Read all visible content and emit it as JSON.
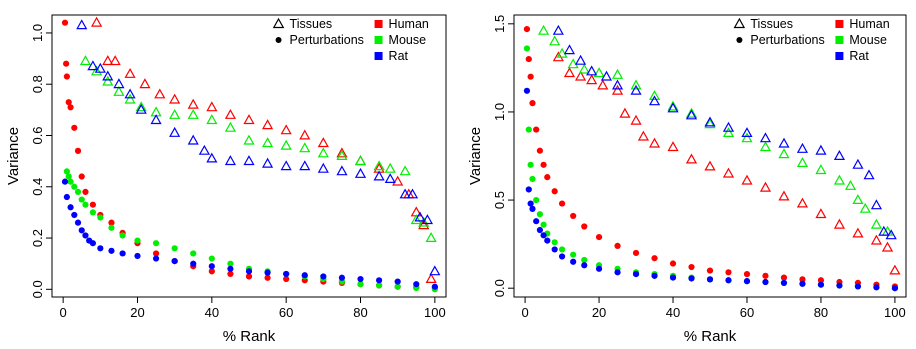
{
  "chart_data": [
    {
      "type": "scatter",
      "xlabel": "% Rank",
      "ylabel": "Variance",
      "xlim": [
        0,
        100
      ],
      "ylim": [
        0,
        1.05
      ],
      "xticks": [
        "0",
        "20",
        "40",
        "60",
        "80",
        "100"
      ],
      "yticks": [
        "0.0",
        "0.2",
        "0.4",
        "0.6",
        "0.8",
        "1.0"
      ],
      "ytick_values": [
        0,
        0.2,
        0.4,
        0.6,
        0.8,
        1.0
      ],
      "grid": false,
      "legend": {
        "placement": "top-right",
        "shapes": [
          {
            "label": "Tissues",
            "marker": "triangle"
          },
          {
            "label": "Perturbations",
            "marker": "circle"
          }
        ],
        "species": [
          {
            "label": "Human",
            "color": "#ff0000"
          },
          {
            "label": "Mouse",
            "color": "#00ee00"
          },
          {
            "label": "Rat",
            "color": "#0000ff"
          }
        ]
      },
      "series": [
        {
          "name": "Human",
          "marker": "triangle",
          "color": "#ff0000",
          "x": [
            9,
            12,
            14,
            18,
            22,
            26,
            30,
            35,
            40,
            45,
            50,
            55,
            60,
            65,
            70,
            75,
            80,
            85,
            90,
            93,
            95,
            97,
            99
          ],
          "y": [
            1.04,
            0.89,
            0.89,
            0.84,
            0.8,
            0.76,
            0.74,
            0.72,
            0.71,
            0.68,
            0.66,
            0.64,
            0.62,
            0.6,
            0.57,
            0.53,
            0.5,
            0.47,
            0.42,
            0.37,
            0.3,
            0.25,
            0.04
          ]
        },
        {
          "name": "Mouse",
          "marker": "triangle",
          "color": "#00ee00",
          "x": [
            6,
            9,
            12,
            15,
            18,
            21,
            25,
            30,
            35,
            40,
            45,
            50,
            55,
            60,
            65,
            70,
            75,
            80,
            85,
            88,
            92,
            95,
            97,
            99
          ],
          "y": [
            0.89,
            0.85,
            0.81,
            0.77,
            0.74,
            0.71,
            0.69,
            0.68,
            0.68,
            0.66,
            0.63,
            0.58,
            0.57,
            0.56,
            0.55,
            0.53,
            0.52,
            0.5,
            0.48,
            0.47,
            0.46,
            0.27,
            0.26,
            0.2
          ]
        },
        {
          "name": "Rat",
          "marker": "triangle",
          "color": "#0000ff",
          "x": [
            5,
            8,
            10,
            12,
            15,
            18,
            21,
            25,
            30,
            35,
            38,
            40,
            45,
            50,
            55,
            60,
            65,
            70,
            75,
            80,
            85,
            88,
            92,
            94,
            96,
            98,
            100
          ],
          "y": [
            1.03,
            0.87,
            0.86,
            0.83,
            0.8,
            0.76,
            0.7,
            0.66,
            0.61,
            0.58,
            0.54,
            0.51,
            0.5,
            0.5,
            0.49,
            0.48,
            0.48,
            0.47,
            0.46,
            0.45,
            0.44,
            0.43,
            0.37,
            0.37,
            0.28,
            0.27,
            0.07
          ]
        },
        {
          "name": "Human",
          "marker": "circle",
          "color": "#ff0000",
          "x": [
            0.5,
            0.8,
            1,
            1.5,
            2,
            3,
            4,
            5,
            6,
            8,
            10,
            13,
            16,
            20,
            25,
            30,
            35,
            40,
            45,
            50,
            55,
            60,
            65,
            70,
            75,
            80,
            85,
            90,
            95,
            100
          ],
          "y": [
            1.04,
            0.88,
            0.83,
            0.73,
            0.71,
            0.63,
            0.54,
            0.44,
            0.38,
            0.33,
            0.29,
            0.26,
            0.22,
            0.18,
            0.14,
            0.11,
            0.09,
            0.07,
            0.06,
            0.05,
            0.045,
            0.04,
            0.035,
            0.03,
            0.025,
            0.02,
            0.015,
            0.01,
            0.008,
            0.005
          ]
        },
        {
          "name": "Mouse",
          "marker": "circle",
          "color": "#00ee00",
          "x": [
            1,
            1.5,
            2,
            3,
            4,
            5,
            6,
            8,
            10,
            13,
            16,
            20,
            25,
            30,
            35,
            40,
            45,
            50,
            55,
            60,
            65,
            70,
            75,
            80,
            85,
            90,
            95,
            100
          ],
          "y": [
            0.46,
            0.44,
            0.42,
            0.4,
            0.38,
            0.35,
            0.33,
            0.3,
            0.28,
            0.24,
            0.21,
            0.19,
            0.18,
            0.16,
            0.14,
            0.12,
            0.1,
            0.08,
            0.07,
            0.06,
            0.05,
            0.04,
            0.03,
            0.02,
            0.015,
            0.01,
            0.005,
            0.0
          ]
        },
        {
          "name": "Rat",
          "marker": "circle",
          "color": "#0000ff",
          "x": [
            0.5,
            1,
            2,
            3,
            4,
            5,
            6,
            7,
            8,
            10,
            13,
            16,
            20,
            25,
            30,
            35,
            40,
            45,
            50,
            55,
            60,
            65,
            70,
            75,
            80,
            85,
            90,
            95,
            100
          ],
          "y": [
            0.42,
            0.36,
            0.32,
            0.29,
            0.26,
            0.23,
            0.21,
            0.19,
            0.18,
            0.16,
            0.15,
            0.14,
            0.13,
            0.12,
            0.11,
            0.1,
            0.09,
            0.08,
            0.07,
            0.065,
            0.06,
            0.055,
            0.05,
            0.045,
            0.04,
            0.035,
            0.03,
            0.02,
            0.01
          ]
        }
      ]
    },
    {
      "type": "scatter",
      "xlabel": "% Rank",
      "ylabel": "Variance",
      "xlim": [
        0,
        100
      ],
      "ylim": [
        0,
        1.5
      ],
      "xticks": [
        "0",
        "20",
        "40",
        "60",
        "80",
        "100"
      ],
      "yticks": [
        "0.0",
        "0.5",
        "1.0",
        "1.5"
      ],
      "ytick_values": [
        0,
        0.5,
        1.0,
        1.5
      ],
      "grid": false,
      "legend": {
        "placement": "top-right",
        "shapes": [
          {
            "label": "Tissues",
            "marker": "triangle"
          },
          {
            "label": "Perturbations",
            "marker": "circle"
          }
        ],
        "species": [
          {
            "label": "Human",
            "color": "#ff0000"
          },
          {
            "label": "Mouse",
            "color": "#00ee00"
          },
          {
            "label": "Rat",
            "color": "#0000ff"
          }
        ]
      },
      "series": [
        {
          "name": "Human",
          "marker": "triangle",
          "color": "#ff0000",
          "x": [
            9,
            12,
            15,
            18,
            21,
            25,
            27,
            30,
            32,
            35,
            40,
            45,
            50,
            55,
            60,
            65,
            70,
            75,
            80,
            85,
            90,
            95,
            98,
            100
          ],
          "y": [
            1.31,
            1.22,
            1.2,
            1.18,
            1.15,
            1.12,
            0.99,
            0.95,
            0.86,
            0.82,
            0.8,
            0.73,
            0.69,
            0.65,
            0.61,
            0.57,
            0.52,
            0.48,
            0.42,
            0.36,
            0.31,
            0.27,
            0.23,
            0.1
          ]
        },
        {
          "name": "Mouse",
          "marker": "triangle",
          "color": "#00ee00",
          "x": [
            5,
            8,
            10,
            13,
            16,
            20,
            25,
            30,
            35,
            40,
            45,
            50,
            55,
            60,
            65,
            70,
            75,
            80,
            85,
            88,
            90,
            92,
            95,
            98
          ],
          "y": [
            1.46,
            1.4,
            1.33,
            1.27,
            1.24,
            1.22,
            1.21,
            1.15,
            1.09,
            1.03,
            0.99,
            0.93,
            0.88,
            0.85,
            0.8,
            0.76,
            0.71,
            0.67,
            0.61,
            0.58,
            0.5,
            0.45,
            0.36,
            0.32
          ]
        },
        {
          "name": "Rat",
          "marker": "triangle",
          "color": "#0000ff",
          "x": [
            9,
            12,
            15,
            18,
            22,
            25,
            30,
            35,
            40,
            45,
            50,
            55,
            60,
            65,
            70,
            75,
            80,
            85,
            90,
            93,
            95,
            97,
            99
          ],
          "y": [
            1.46,
            1.35,
            1.29,
            1.23,
            1.2,
            1.15,
            1.12,
            1.06,
            1.02,
            0.98,
            0.94,
            0.91,
            0.88,
            0.85,
            0.82,
            0.79,
            0.78,
            0.75,
            0.7,
            0.64,
            0.47,
            0.32,
            0.3
          ]
        },
        {
          "name": "Human",
          "marker": "circle",
          "color": "#ff0000",
          "x": [
            0.5,
            1,
            1.5,
            2,
            3,
            4,
            5,
            6,
            8,
            10,
            13,
            16,
            20,
            25,
            30,
            35,
            40,
            45,
            50,
            55,
            60,
            65,
            70,
            75,
            80,
            85,
            90,
            95,
            100
          ],
          "y": [
            1.47,
            1.3,
            1.2,
            1.05,
            0.9,
            0.78,
            0.7,
            0.63,
            0.55,
            0.48,
            0.41,
            0.35,
            0.29,
            0.24,
            0.2,
            0.17,
            0.14,
            0.12,
            0.1,
            0.09,
            0.08,
            0.07,
            0.06,
            0.05,
            0.045,
            0.035,
            0.03,
            0.02,
            0.01
          ]
        },
        {
          "name": "Mouse",
          "marker": "circle",
          "color": "#00ee00",
          "x": [
            0.5,
            1,
            1.5,
            2,
            3,
            4,
            5,
            6,
            8,
            10,
            13,
            16,
            20,
            25,
            30,
            35,
            40,
            45,
            50,
            55,
            60,
            65,
            70,
            75,
            80,
            85,
            90,
            95,
            100
          ],
          "y": [
            1.36,
            0.9,
            0.7,
            0.62,
            0.5,
            0.42,
            0.36,
            0.31,
            0.26,
            0.22,
            0.19,
            0.16,
            0.13,
            0.11,
            0.09,
            0.08,
            0.07,
            0.06,
            0.05,
            0.045,
            0.04,
            0.035,
            0.03,
            0.025,
            0.02,
            0.015,
            0.01,
            0.005,
            0.0
          ]
        },
        {
          "name": "Rat",
          "marker": "circle",
          "color": "#0000ff",
          "x": [
            0.5,
            1,
            1.5,
            2,
            3,
            4,
            5,
            6,
            8,
            10,
            13,
            16,
            20,
            25,
            30,
            35,
            40,
            45,
            50,
            55,
            60,
            65,
            70,
            75,
            80,
            85,
            90,
            95,
            100
          ],
          "y": [
            1.12,
            0.56,
            0.48,
            0.45,
            0.38,
            0.33,
            0.3,
            0.27,
            0.22,
            0.18,
            0.15,
            0.13,
            0.11,
            0.09,
            0.08,
            0.07,
            0.06,
            0.055,
            0.05,
            0.045,
            0.04,
            0.035,
            0.03,
            0.025,
            0.02,
            0.015,
            0.01,
            0.005,
            0.0
          ]
        }
      ]
    }
  ]
}
